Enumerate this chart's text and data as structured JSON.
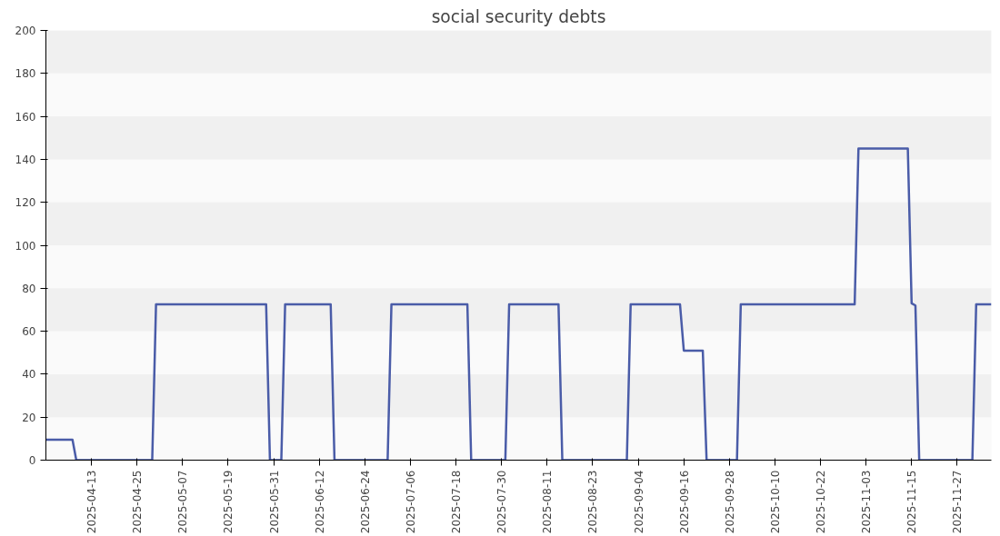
{
  "chart_data": {
    "type": "line",
    "title": "social security debts",
    "x": [
      "2025-04-01",
      "2025-04-08",
      "2025-04-09",
      "2025-04-29",
      "2025-04-30",
      "2025-05-29",
      "2025-05-30",
      "2025-06-02",
      "2025-06-03",
      "2025-06-15",
      "2025-06-16",
      "2025-06-30",
      "2025-07-01",
      "2025-07-21",
      "2025-07-22",
      "2025-07-31",
      "2025-08-01",
      "2025-08-14",
      "2025-08-15",
      "2025-09-01",
      "2025-09-02",
      "2025-09-15",
      "2025-09-16",
      "2025-09-21",
      "2025-09-22",
      "2025-09-30",
      "2025-10-01",
      "2025-10-31",
      "2025-11-01",
      "2025-11-14",
      "2025-11-15",
      "2025-11-16",
      "2025-11-17",
      "2025-12-01",
      "2025-12-02",
      "2025-12-06"
    ],
    "series": [
      {
        "color": "#4a5ca8",
        "values": [
          9.5,
          9.5,
          0,
          0,
          72.5,
          72.5,
          0,
          0,
          72.5,
          72.5,
          0,
          0,
          72.5,
          72.5,
          0,
          0,
          72.5,
          72.5,
          0,
          0,
          72.5,
          72.5,
          51,
          51,
          0,
          0,
          72.5,
          72.5,
          145,
          145,
          73,
          72,
          0,
          0,
          72.5,
          72.5
        ]
      }
    ],
    "xlim": [
      "2025-04-01",
      "2025-12-06"
    ],
    "xticks": [
      "2025-04-13",
      "2025-04-25",
      "2025-05-07",
      "2025-05-19",
      "2025-05-31",
      "2025-06-12",
      "2025-06-24",
      "2025-07-06",
      "2025-07-18",
      "2025-07-30",
      "2025-08-11",
      "2025-08-23",
      "2025-09-04",
      "2025-09-16",
      "2025-09-28",
      "2025-10-10",
      "2025-10-22",
      "2025-11-03",
      "2025-11-15",
      "2025-11-27"
    ],
    "ylim": [
      0,
      200
    ],
    "yticks": [
      0,
      20,
      40,
      60,
      80,
      100,
      120,
      140,
      160,
      180,
      200
    ],
    "marker": "none",
    "line_style": "solid"
  }
}
